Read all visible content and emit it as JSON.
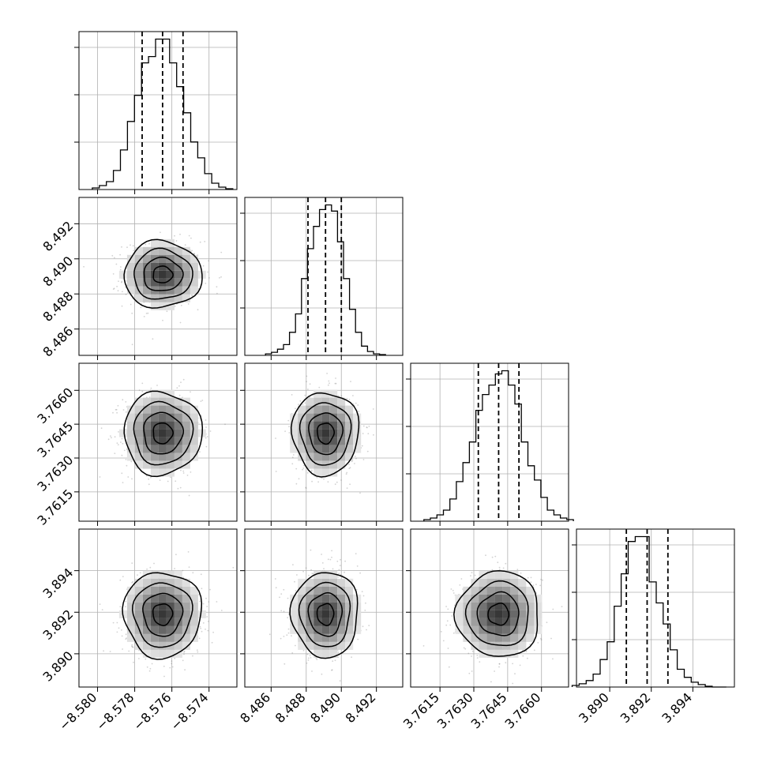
{
  "chart_data": {
    "type": "corner",
    "parameters": 4,
    "style": {
      "line_color": "#000000",
      "grid_color": "#b0b0b0",
      "scatter_color": "#7f7f7f",
      "frame_color": "#000000",
      "grid": true
    },
    "axes_ranges": [
      [
        -8.581,
        -8.5725
      ],
      [
        8.4845,
        8.4935
      ],
      [
        3.7602,
        3.7672
      ],
      [
        3.8884,
        3.896
      ]
    ],
    "tick_values": [
      [
        -8.58,
        -8.578,
        -8.576,
        -8.574
      ],
      [
        8.486,
        8.488,
        8.49,
        8.492
      ],
      [
        3.7615,
        3.763,
        3.7645,
        3.766
      ],
      [
        3.89,
        3.892,
        3.894
      ]
    ],
    "tick_labels": [
      [
        "−8.580",
        "−8.578",
        "−8.576",
        "−8.574"
      ],
      [
        "8.486",
        "8.488",
        "8.490",
        "8.492"
      ],
      [
        "3.7615",
        "3.7630",
        "3.7645",
        "3.7660"
      ],
      [
        "3.890",
        "3.892",
        "3.894"
      ]
    ],
    "x_tick_labels_param4": [
      "3.890",
      "3.892",
      "3.894"
    ],
    "means": [
      -8.5765,
      8.4891,
      3.7641,
      3.8919
    ],
    "sigmas": [
      0.00105,
      0.00095,
      0.00092,
      0.00103
    ],
    "quantiles": [
      {
        "q16": -8.5776,
        "q50": -8.5765,
        "q84": -8.5754
      },
      {
        "q16": 8.4881,
        "q50": 8.4891,
        "q84": 8.49
      },
      {
        "q16": 3.7632,
        "q50": 3.7641,
        "q84": 3.765
      },
      {
        "q16": 3.8908,
        "q50": 3.8918,
        "q84": 3.8928
      }
    ],
    "histograms": [
      {
        "param": 1,
        "bins": 20,
        "counts": [
          2,
          5,
          10,
          24,
          50,
          86,
          119,
          160,
          168,
          190,
          190,
          160,
          130,
          97,
          60,
          40,
          20,
          8,
          3,
          1
        ]
      },
      {
        "param": 2,
        "bins": 20,
        "counts": [
          2,
          4,
          8,
          14,
          30,
          54,
          100,
          139,
          168,
          190,
          196,
          188,
          148,
          100,
          60,
          30,
          12,
          5,
          2,
          1
        ]
      },
      {
        "param": 3,
        "bins": 23,
        "counts": [
          2,
          4,
          8,
          14,
          28,
          50,
          74,
          100,
          140,
          160,
          172,
          186,
          190,
          172,
          148,
          100,
          70,
          52,
          30,
          14,
          8,
          4,
          2
        ]
      },
      {
        "param": 4,
        "bins": 22,
        "counts": [
          2,
          4,
          8,
          16,
          34,
          56,
          100,
          140,
          180,
          186,
          186,
          130,
          104,
          78,
          46,
          22,
          12,
          6,
          3,
          1,
          0,
          0
        ]
      }
    ],
    "contour_levels_sigma": [
      0.5,
      1.0,
      1.5,
      2.0
    ],
    "scatter_points_per_panel": 650
  }
}
